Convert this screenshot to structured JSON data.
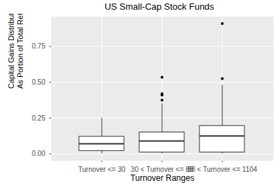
{
  "chart_data": {
    "type": "box",
    "title": "US Small-Cap Stock Funds",
    "x_label": "Turnover Ranges",
    "y_label": "Capital Gains Distributions\nAs Portion of Total Return",
    "categories": [
      "Turnover <= 30",
      "30 < Turnover <= 88",
      "88 < Turnover <= 1104"
    ],
    "min": [
      0.0,
      0.0,
      0.0
    ],
    "q1": [
      0.02,
      0.01,
      0.01
    ],
    "median": [
      0.07,
      0.09,
      0.125
    ],
    "q3": [
      0.12,
      0.15,
      0.195
    ],
    "max": [
      0.25,
      0.35,
      0.48
    ],
    "outliers": [
      [],
      [
        0.375,
        0.41,
        0.42,
        0.535
      ],
      [
        0.525,
        0.91
      ]
    ],
    "color": "#ffffff",
    "ylim": [
      -0.046,
      0.956
    ],
    "yticks": [
      {
        "value": 0,
        "label": "0.00"
      },
      {
        "value": 0.25,
        "label": "0.25"
      },
      {
        "value": 0.5,
        "label": "0.50"
      },
      {
        "value": 0.75,
        "label": "0.75"
      }
    ],
    "grid": true
  }
}
